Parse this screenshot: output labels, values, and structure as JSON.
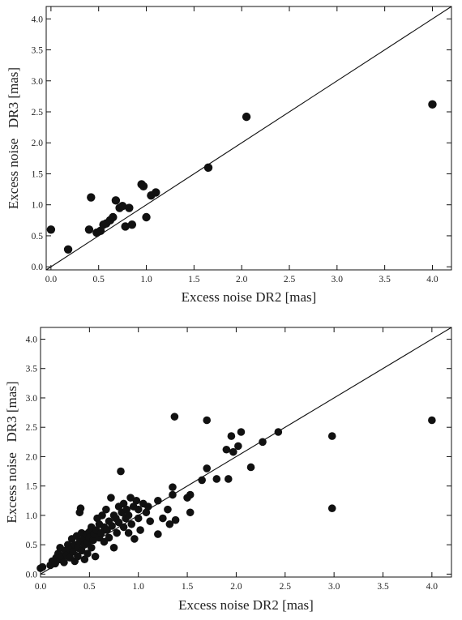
{
  "chart_data": [
    {
      "type": "scatter",
      "title": "",
      "xlabel": "Excess noise DR2 [mas]",
      "ylabel": "Excess noise   DR3 [mas]",
      "xlim": [
        -0.05,
        4.2
      ],
      "ylim": [
        -0.05,
        4.2
      ],
      "xticks": [
        "0.0",
        "0.5",
        "1.0",
        "1.5",
        "2.0",
        "2.5",
        "3.0",
        "3.5",
        "4.0"
      ],
      "yticks": [
        "0.0",
        "0.5",
        "1.0",
        "1.5",
        "2.0",
        "2.5",
        "3.0",
        "3.5",
        "4.0"
      ],
      "reference_line": "y = x",
      "grid": false,
      "points": [
        [
          0.0,
          0.6
        ],
        [
          0.18,
          0.28
        ],
        [
          0.4,
          0.6
        ],
        [
          0.42,
          1.12
        ],
        [
          0.48,
          0.55
        ],
        [
          0.52,
          0.58
        ],
        [
          0.55,
          0.68
        ],
        [
          0.58,
          0.7
        ],
        [
          0.62,
          0.75
        ],
        [
          0.65,
          0.8
        ],
        [
          0.68,
          1.07
        ],
        [
          0.72,
          0.95
        ],
        [
          0.75,
          0.98
        ],
        [
          0.78,
          0.65
        ],
        [
          0.82,
          0.95
        ],
        [
          0.85,
          0.68
        ],
        [
          0.95,
          1.33
        ],
        [
          0.97,
          1.3
        ],
        [
          1.0,
          0.8
        ],
        [
          1.05,
          1.15
        ],
        [
          1.1,
          1.2
        ],
        [
          1.65,
          1.6
        ],
        [
          2.05,
          2.42
        ],
        [
          4.0,
          2.62
        ]
      ]
    },
    {
      "type": "scatter",
      "title": "",
      "xlabel": "Excess noise DR2 [mas]",
      "ylabel": "Excess noise   DR3 [mas]",
      "xlim": [
        0.0,
        4.2
      ],
      "ylim": [
        -0.05,
        4.2
      ],
      "xticks": [
        "0.0",
        "0.5",
        "1.0",
        "1.5",
        "2.0",
        "2.5",
        "3.0",
        "3.5",
        "4.0"
      ],
      "yticks": [
        "0.0",
        "0.5",
        "1.0",
        "1.5",
        "2.0",
        "2.5",
        "3.0",
        "3.5",
        "4.0"
      ],
      "reference_line": "y = x",
      "grid": false,
      "points": [
        [
          0.0,
          0.1
        ],
        [
          0.02,
          0.12
        ],
        [
          0.1,
          0.15
        ],
        [
          0.12,
          0.22
        ],
        [
          0.15,
          0.18
        ],
        [
          0.16,
          0.28
        ],
        [
          0.18,
          0.35
        ],
        [
          0.2,
          0.25
        ],
        [
          0.2,
          0.45
        ],
        [
          0.22,
          0.3
        ],
        [
          0.24,
          0.2
        ],
        [
          0.25,
          0.4
        ],
        [
          0.27,
          0.32
        ],
        [
          0.28,
          0.5
        ],
        [
          0.3,
          0.28
        ],
        [
          0.3,
          0.42
        ],
        [
          0.32,
          0.6
        ],
        [
          0.33,
          0.38
        ],
        [
          0.35,
          0.22
        ],
        [
          0.35,
          0.5
        ],
        [
          0.37,
          0.65
        ],
        [
          0.38,
          0.45
        ],
        [
          0.38,
          0.3
        ],
        [
          0.4,
          0.55
        ],
        [
          0.4,
          1.05
        ],
        [
          0.41,
          1.12
        ],
        [
          0.42,
          0.7
        ],
        [
          0.42,
          0.4
        ],
        [
          0.44,
          0.6
        ],
        [
          0.45,
          0.5
        ],
        [
          0.45,
          0.25
        ],
        [
          0.47,
          0.68
        ],
        [
          0.48,
          0.55
        ],
        [
          0.48,
          0.35
        ],
        [
          0.5,
          0.72
        ],
        [
          0.5,
          0.62
        ],
        [
          0.52,
          0.45
        ],
        [
          0.52,
          0.8
        ],
        [
          0.54,
          0.58
        ],
        [
          0.55,
          0.68
        ],
        [
          0.56,
          0.3
        ],
        [
          0.57,
          0.75
        ],
        [
          0.58,
          0.95
        ],
        [
          0.6,
          0.62
        ],
        [
          0.6,
          0.85
        ],
        [
          0.62,
          0.7
        ],
        [
          0.63,
          1.0
        ],
        [
          0.65,
          0.55
        ],
        [
          0.65,
          0.8
        ],
        [
          0.67,
          1.1
        ],
        [
          0.68,
          0.75
        ],
        [
          0.7,
          0.9
        ],
        [
          0.7,
          0.62
        ],
        [
          0.72,
          1.3
        ],
        [
          0.73,
          0.82
        ],
        [
          0.75,
          1.0
        ],
        [
          0.75,
          0.45
        ],
        [
          0.77,
          0.95
        ],
        [
          0.78,
          0.7
        ],
        [
          0.8,
          1.15
        ],
        [
          0.8,
          0.88
        ],
        [
          0.82,
          1.75
        ],
        [
          0.83,
          1.05
        ],
        [
          0.85,
          0.8
        ],
        [
          0.85,
          1.2
        ],
        [
          0.87,
          0.95
        ],
        [
          0.88,
          1.1
        ],
        [
          0.9,
          0.7
        ],
        [
          0.9,
          1.0
        ],
        [
          0.92,
          1.3
        ],
        [
          0.93,
          0.85
        ],
        [
          0.95,
          1.15
        ],
        [
          0.96,
          0.6
        ],
        [
          0.98,
          1.25
        ],
        [
          1.0,
          0.95
        ],
        [
          1.0,
          1.1
        ],
        [
          1.02,
          0.75
        ],
        [
          1.05,
          1.2
        ],
        [
          1.08,
          1.05
        ],
        [
          1.1,
          1.15
        ],
        [
          1.12,
          0.9
        ],
        [
          1.2,
          0.68
        ],
        [
          1.2,
          1.25
        ],
        [
          1.25,
          0.95
        ],
        [
          1.3,
          1.1
        ],
        [
          1.32,
          0.85
        ],
        [
          1.35,
          1.35
        ],
        [
          1.35,
          1.48
        ],
        [
          1.37,
          2.68
        ],
        [
          1.38,
          0.92
        ],
        [
          1.5,
          1.3
        ],
        [
          1.53,
          1.05
        ],
        [
          1.53,
          1.35
        ],
        [
          1.65,
          1.6
        ],
        [
          1.7,
          1.8
        ],
        [
          1.7,
          2.62
        ],
        [
          1.8,
          1.62
        ],
        [
          1.9,
          2.12
        ],
        [
          1.92,
          1.62
        ],
        [
          1.95,
          2.35
        ],
        [
          1.97,
          2.08
        ],
        [
          2.02,
          2.18
        ],
        [
          2.05,
          2.42
        ],
        [
          2.15,
          1.82
        ],
        [
          2.27,
          2.25
        ],
        [
          2.43,
          2.42
        ],
        [
          2.98,
          2.35
        ],
        [
          2.98,
          1.12
        ],
        [
          4.0,
          2.62
        ]
      ]
    }
  ]
}
